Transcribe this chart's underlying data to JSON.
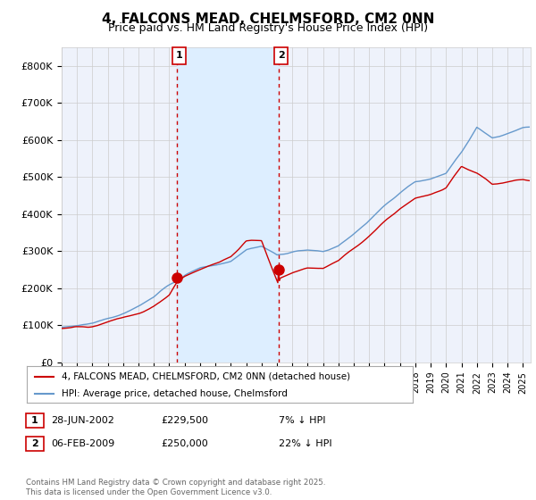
{
  "title": "4, FALCONS MEAD, CHELMSFORD, CM2 0NN",
  "subtitle": "Price paid vs. HM Land Registry's House Price Index (HPI)",
  "title_fontsize": 11,
  "subtitle_fontsize": 9,
  "legend_label_red": "4, FALCONS MEAD, CHELMSFORD, CM2 0NN (detached house)",
  "legend_label_blue": "HPI: Average price, detached house, Chelmsford",
  "ylabel_ticks": [
    "£0",
    "£100K",
    "£200K",
    "£300K",
    "£400K",
    "£500K",
    "£600K",
    "£700K",
    "£800K"
  ],
  "ytick_values": [
    0,
    100000,
    200000,
    300000,
    400000,
    500000,
    600000,
    700000,
    800000
  ],
  "ylim": [
    0,
    850000
  ],
  "xlim_start": 1995.0,
  "xlim_end": 2025.5,
  "background_color": "#ffffff",
  "plot_bg_color": "#eef2fb",
  "grid_color": "#cccccc",
  "red_color": "#cc0000",
  "blue_color": "#6699cc",
  "marker1_x": 2002.49,
  "marker1_y": 229500,
  "marker2_x": 2009.09,
  "marker2_y": 250000,
  "marker1_label": "1",
  "marker2_label": "2",
  "shade_color": "#ddeeff",
  "footer": "Contains HM Land Registry data © Crown copyright and database right 2025.\nThis data is licensed under the Open Government Licence v3.0.",
  "hpi_keypoints_x": [
    1995,
    1996,
    1997,
    1998,
    1999,
    2000,
    2001,
    2002,
    2003,
    2004,
    2005,
    2006,
    2007,
    2008,
    2009,
    2010,
    2011,
    2012,
    2013,
    2014,
    2015,
    2016,
    2017,
    2018,
    2019,
    2020,
    2021,
    2022,
    2023,
    2024,
    2025
  ],
  "hpi_keypoints_y": [
    95000,
    100000,
    110000,
    122000,
    135000,
    152000,
    175000,
    210000,
    240000,
    260000,
    268000,
    280000,
    310000,
    320000,
    295000,
    305000,
    310000,
    308000,
    325000,
    360000,
    400000,
    440000,
    480000,
    510000,
    520000,
    535000,
    595000,
    665000,
    640000,
    650000,
    660000
  ],
  "red_keypoints_x": [
    1995,
    1996,
    1997,
    1998,
    1999,
    2000,
    2001,
    2002,
    2002.49,
    2003,
    2004,
    2005,
    2006,
    2007,
    2008,
    2009.09,
    2009.2,
    2010,
    2011,
    2012,
    2013,
    2014,
    2015,
    2016,
    2017,
    2018,
    2019,
    2020,
    2021,
    2022,
    2023,
    2024,
    2025
  ],
  "red_keypoints_y": [
    92000,
    96000,
    104000,
    116000,
    128000,
    144000,
    164000,
    196000,
    229500,
    248000,
    272000,
    295000,
    315000,
    360000,
    365000,
    250000,
    265000,
    282000,
    290000,
    285000,
    300000,
    336000,
    372000,
    408000,
    444000,
    472000,
    486000,
    502000,
    556000,
    535000,
    505000,
    515000,
    520000
  ]
}
